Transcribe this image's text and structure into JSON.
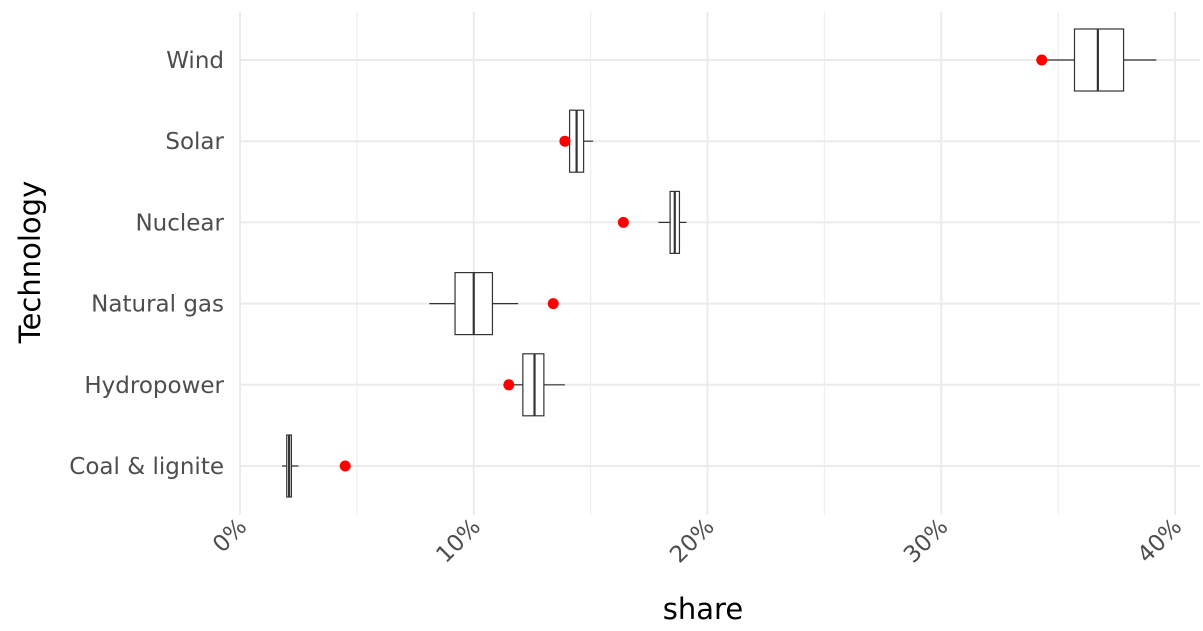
{
  "chart_data": {
    "type": "boxplot",
    "orientation": "horizontal",
    "title": "",
    "xlabel": "share",
    "ylabel": "Technology",
    "xlim": [
      0,
      0.4
    ],
    "x_ticks": [
      0,
      0.1,
      0.2,
      0.3,
      0.4
    ],
    "x_tick_labels": [
      "0%",
      "10%",
      "20%",
      "30%",
      "40%"
    ],
    "grid": true,
    "legend": "none",
    "categories": [
      "Coal & lignite",
      "Hydropower",
      "Natural gas",
      "Nuclear",
      "Solar",
      "Wind"
    ],
    "boxes": [
      {
        "category": "Coal & lignite",
        "min": 0.018,
        "q1": 0.02,
        "median": 0.021,
        "q3": 0.022,
        "max": 0.025
      },
      {
        "category": "Hydropower",
        "min": 0.115,
        "q1": 0.121,
        "median": 0.126,
        "q3": 0.13,
        "max": 0.139
      },
      {
        "category": "Natural gas",
        "min": 0.081,
        "q1": 0.092,
        "median": 0.1,
        "q3": 0.108,
        "max": 0.119
      },
      {
        "category": "Nuclear",
        "min": 0.179,
        "q1": 0.184,
        "median": 0.186,
        "q3": 0.188,
        "max": 0.191
      },
      {
        "category": "Solar",
        "min": 0.14,
        "q1": 0.141,
        "median": 0.144,
        "q3": 0.147,
        "max": 0.151
      },
      {
        "category": "Wind",
        "min": 0.343,
        "q1": 0.357,
        "median": 0.367,
        "q3": 0.378,
        "max": 0.392
      }
    ],
    "points": [
      {
        "category": "Coal & lignite",
        "value": 0.045
      },
      {
        "category": "Hydropower",
        "value": 0.115
      },
      {
        "category": "Natural gas",
        "value": 0.134
      },
      {
        "category": "Nuclear",
        "value": 0.164
      },
      {
        "category": "Solar",
        "value": 0.139
      },
      {
        "category": "Wind",
        "value": 0.343
      }
    ],
    "point_color": "#ff0000"
  }
}
